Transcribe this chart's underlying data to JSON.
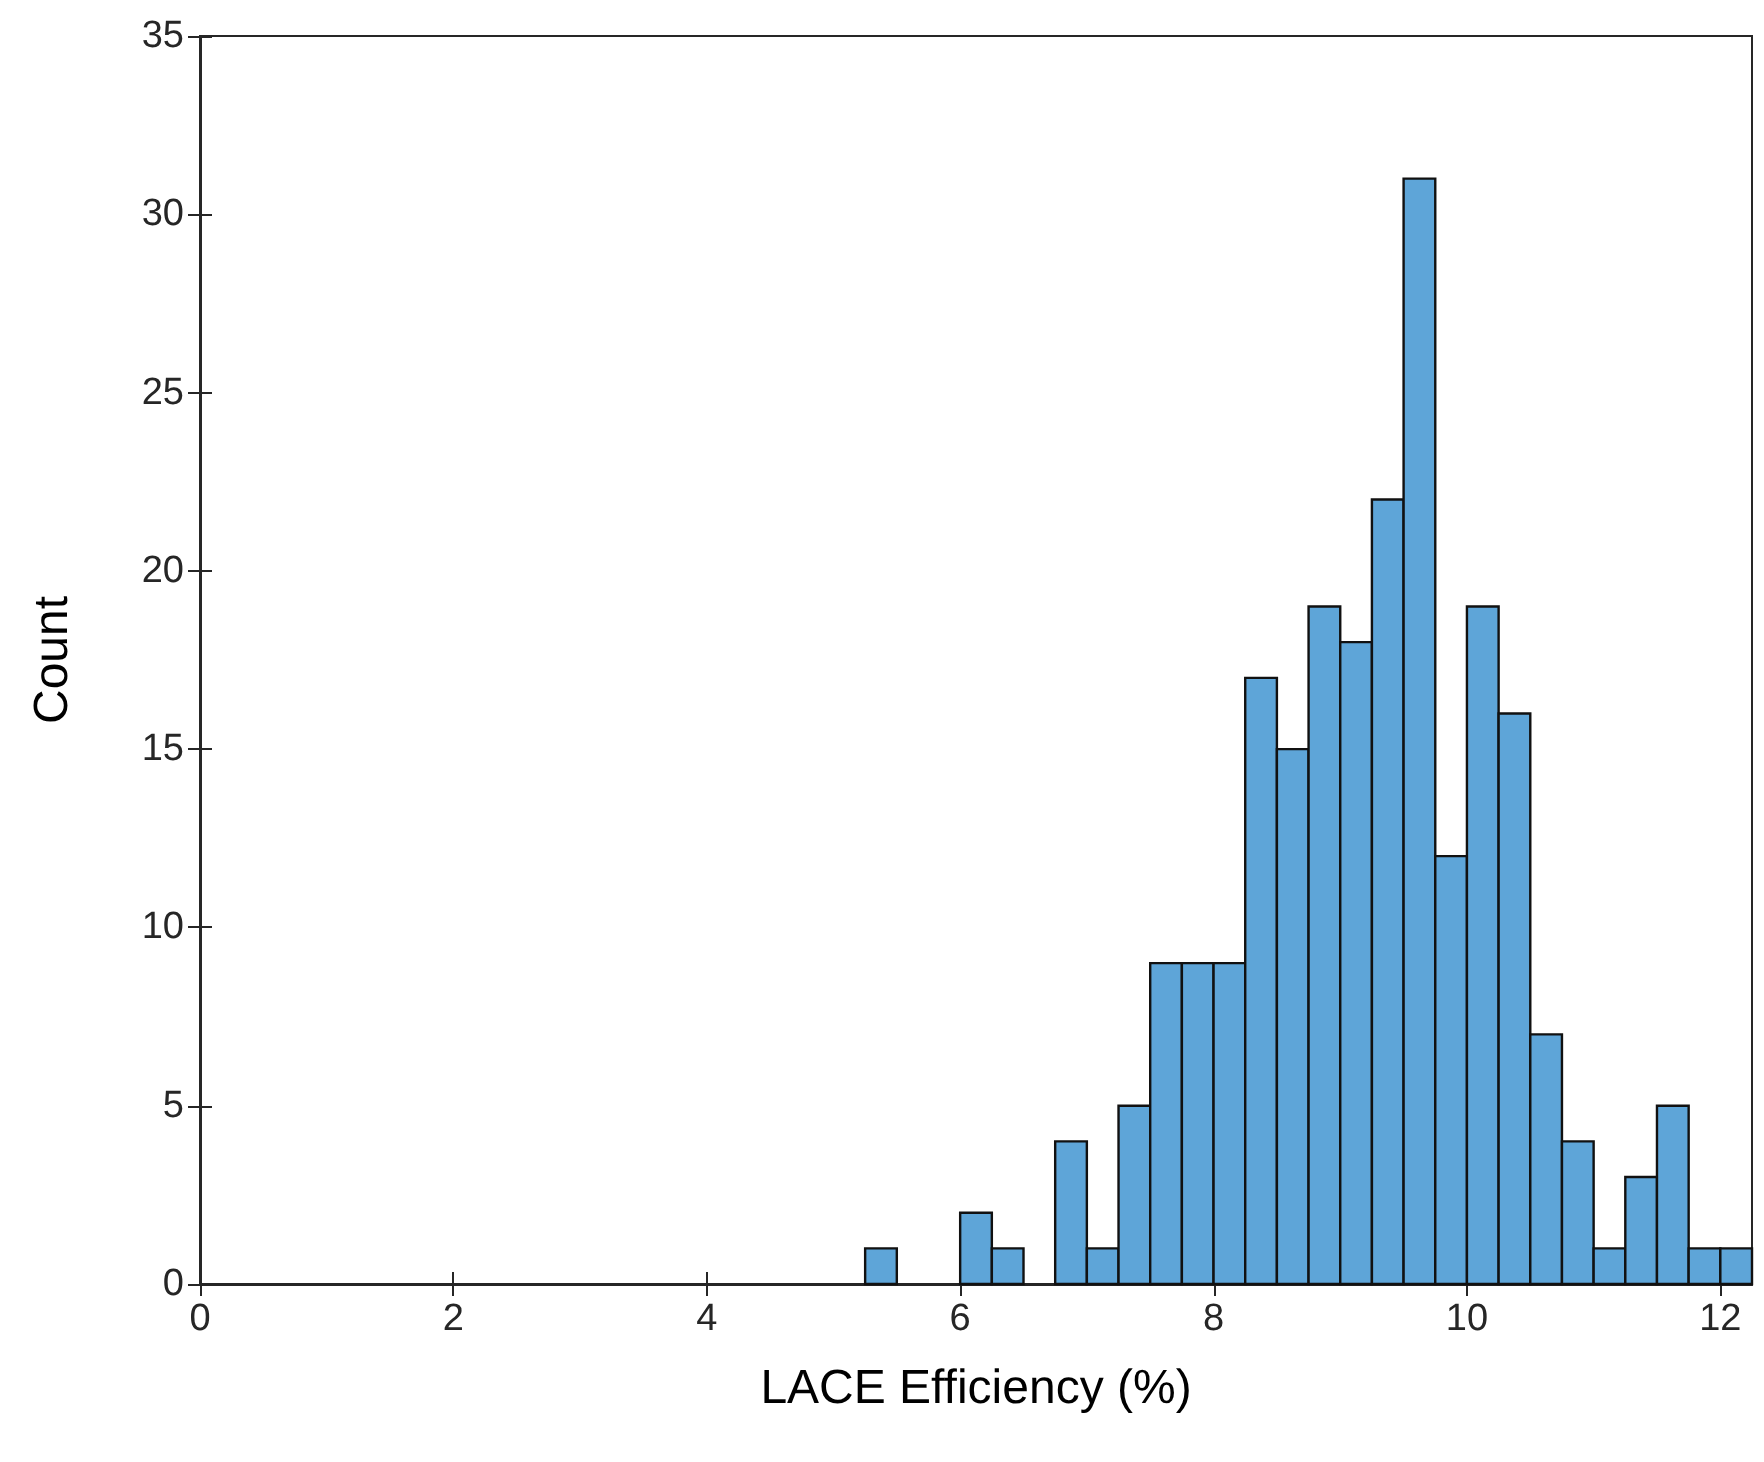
{
  "chart_data": {
    "type": "histogram",
    "xlabel": "LACE Efficiency (%)",
    "ylabel": "Count",
    "color": "#5ea5d8",
    "bins": [
      5.25,
      5.5,
      5.75,
      6.0,
      6.25,
      6.5,
      6.75,
      7.0,
      7.25,
      7.5,
      7.75,
      8.0,
      8.25,
      8.5,
      8.75,
      9.0,
      9.25,
      9.5,
      9.75,
      10.0,
      10.25,
      10.5,
      10.75,
      11.0,
      11.25,
      11.5,
      11.75,
      12.0,
      12.25
    ],
    "values": [
      1,
      0,
      0,
      2,
      1,
      0,
      4,
      1,
      5,
      9,
      9,
      9,
      17,
      15,
      19,
      18,
      22,
      31,
      12,
      19,
      16,
      7,
      4,
      1,
      3,
      5,
      1,
      1
    ],
    "xlim": [
      0,
      12.25
    ],
    "xticks": [
      0,
      2,
      4,
      6,
      8,
      10,
      12
    ],
    "ylim": [
      0,
      35
    ],
    "yticks": [
      0,
      5,
      10,
      15,
      20,
      25,
      30,
      35
    ],
    "grid": false
  }
}
